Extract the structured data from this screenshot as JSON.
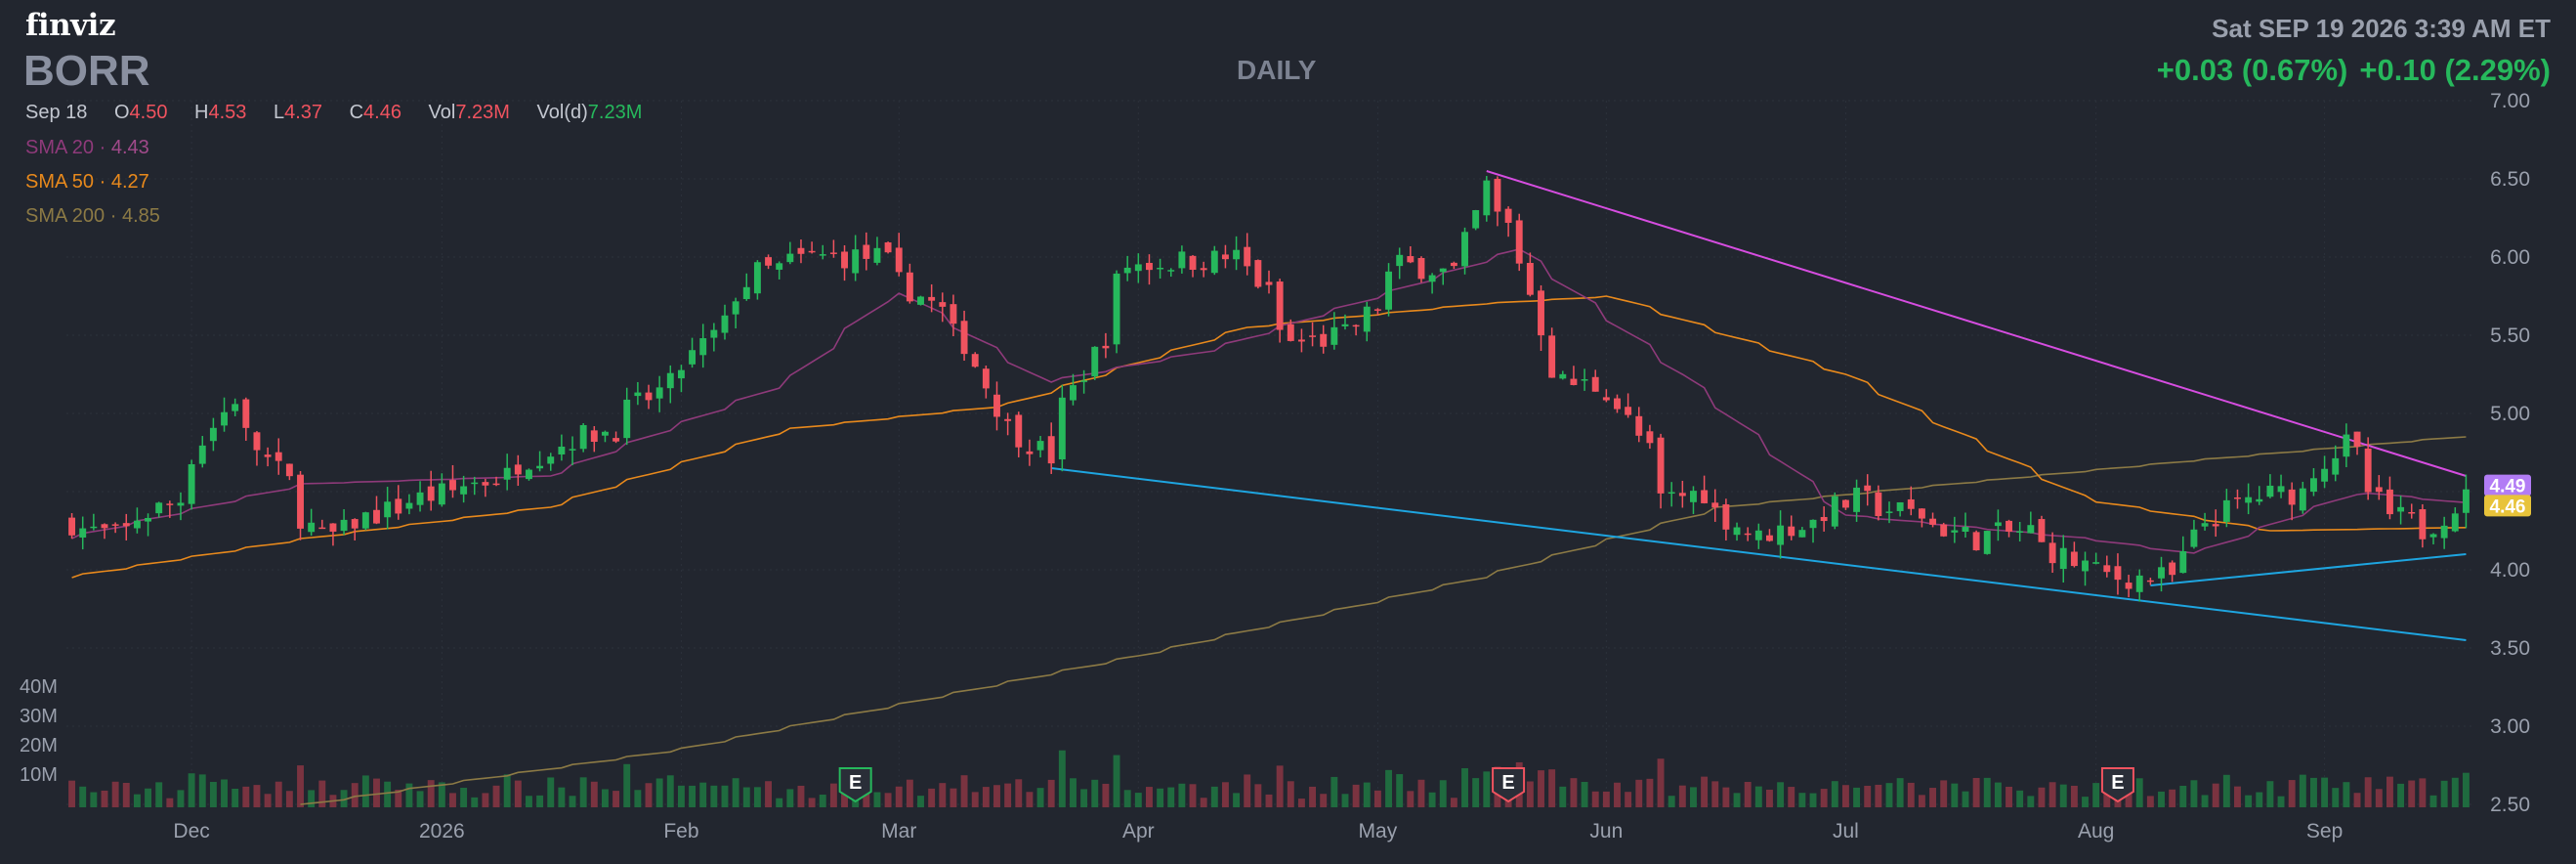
{
  "header": {
    "logo": "finviz",
    "ticker": "BORR",
    "period": "DAILY",
    "datetime": "Sat SEP 19 2026 3:39 AM ET",
    "change_1": "+0.03 (0.67%)",
    "change_2": "+0.10 (2.29%)"
  },
  "ohlc": {
    "date": "Sep 18",
    "open_label": "O",
    "open": "4.50",
    "high_label": "H",
    "high": "4.53",
    "low_label": "L",
    "low": "4.37",
    "close_label": "C",
    "close": "4.46",
    "vol_label": "Vol",
    "vol": "7.23M",
    "vold_label": "Vol(d)",
    "vold": "7.23M"
  },
  "legend": [
    {
      "label": "SMA 20",
      "value": "4.43",
      "color": "#8e3a7a",
      "valueColor": "#a04a8a"
    },
    {
      "label": "SMA 50",
      "value": "4.27",
      "color": "#e8891c",
      "valueColor": "#e8891c"
    },
    {
      "label": "SMA 200",
      "value": "4.85",
      "color": "#8c7a45",
      "valueColor": "#8c7a45"
    }
  ],
  "volume_axis": [
    "40M",
    "30M",
    "20M",
    "10M"
  ],
  "earnings_marker": "E",
  "colors": {
    "background": "#22262f",
    "up": "#26b85c",
    "down": "#f0535f",
    "volume_up": "#1f6b3f",
    "volume_down": "#7a3340",
    "upper_trendline": "#d64de0",
    "lower_trendline": "#1ea5e0",
    "grid": "#2c313b"
  },
  "chart_data": {
    "type": "candlestick",
    "y_ticks": [
      7.0,
      6.5,
      6.0,
      5.5,
      5.0,
      4.5,
      4.0,
      3.5,
      3.0,
      2.5
    ],
    "ylim": [
      2.5,
      7.0
    ],
    "x_ticks": [
      "Dec",
      "2026",
      "Feb",
      "Mar",
      "Apr",
      "May",
      "Jun",
      "Jul",
      "Aug",
      "Sep"
    ],
    "price_tags": [
      {
        "value": "4.49",
        "color": "#b27cf5"
      },
      {
        "value": "4.46",
        "color": "#e8c33a"
      }
    ],
    "earnings": [
      "2026-02-24",
      "2026-05-19",
      "2026-08-05"
    ],
    "anchors": [
      [
        "2025-11-14",
        4.3
      ],
      [
        "2025-11-20",
        4.22
      ],
      [
        "2025-11-28",
        4.45
      ],
      [
        "2025-12-05",
        5.1
      ],
      [
        "2025-12-10",
        4.7
      ],
      [
        "2025-12-17",
        4.2
      ],
      [
        "2025-12-26",
        4.4
      ],
      [
        "2026-01-09",
        4.6
      ],
      [
        "2026-01-16",
        4.8
      ],
      [
        "2026-01-23",
        4.9
      ],
      [
        "2026-02-02",
        5.3
      ],
      [
        "2026-02-11",
        5.9
      ],
      [
        "2026-02-18",
        6.0
      ],
      [
        "2026-02-26",
        6.0
      ],
      [
        "2026-03-04",
        5.75
      ],
      [
        "2026-03-10",
        5.45
      ],
      [
        "2026-03-13",
        5.05
      ],
      [
        "2026-03-20",
        4.72
      ],
      [
        "2026-03-24",
        5.15
      ],
      [
        "2026-03-31",
        5.95
      ],
      [
        "2026-04-14",
        6.0
      ],
      [
        "2026-04-21",
        5.45
      ],
      [
        "2026-04-28",
        5.5
      ],
      [
        "2026-05-05",
        5.95
      ],
      [
        "2026-05-12",
        5.9
      ],
      [
        "2026-05-15",
        6.45
      ],
      [
        "2026-05-19",
        6.2
      ],
      [
        "2026-05-22",
        5.55
      ],
      [
        "2026-05-26",
        5.2
      ],
      [
        "2026-06-01",
        5.15
      ],
      [
        "2026-06-08",
        4.45
      ],
      [
        "2026-06-12",
        4.5
      ],
      [
        "2026-06-19",
        4.2
      ],
      [
        "2026-06-26",
        4.3
      ],
      [
        "2026-07-02",
        4.45
      ],
      [
        "2026-07-10",
        4.35
      ],
      [
        "2026-07-17",
        4.2
      ],
      [
        "2026-07-24",
        4.25
      ],
      [
        "2026-07-30",
        4.05
      ],
      [
        "2026-08-05",
        3.95
      ],
      [
        "2026-08-12",
        3.95
      ],
      [
        "2026-08-14",
        4.2
      ],
      [
        "2026-08-21",
        4.45
      ],
      [
        "2026-08-28",
        4.5
      ],
      [
        "2026-09-03",
        4.8
      ],
      [
        "2026-09-09",
        4.35
      ],
      [
        "2026-09-14",
        4.25
      ],
      [
        "2026-09-18",
        4.46
      ]
    ],
    "sma20": [
      [
        "2025-11-14",
        4.2
      ],
      [
        "2025-12-15",
        4.55
      ],
      [
        "2026-01-15",
        4.6
      ],
      [
        "2026-02-15",
        5.2
      ],
      [
        "2026-03-01",
        5.8
      ],
      [
        "2026-03-20",
        5.2
      ],
      [
        "2026-04-10",
        5.4
      ],
      [
        "2026-05-05",
        5.8
      ],
      [
        "2026-05-20",
        6.05
      ],
      [
        "2026-06-10",
        5.25
      ],
      [
        "2026-07-01",
        4.35
      ],
      [
        "2026-08-01",
        4.2
      ],
      [
        "2026-08-15",
        4.1
      ],
      [
        "2026-09-05",
        4.5
      ],
      [
        "2026-09-18",
        4.43
      ]
    ],
    "sma50": [
      [
        "2025-11-14",
        3.95
      ],
      [
        "2025-12-15",
        4.2
      ],
      [
        "2026-01-15",
        4.4
      ],
      [
        "2026-02-15",
        4.9
      ],
      [
        "2026-03-15",
        5.05
      ],
      [
        "2026-04-15",
        5.55
      ],
      [
        "2026-05-15",
        5.7
      ],
      [
        "2026-06-01",
        5.75
      ],
      [
        "2026-07-01",
        5.25
      ],
      [
        "2026-08-01",
        4.45
      ],
      [
        "2026-08-25",
        4.25
      ],
      [
        "2026-09-18",
        4.27
      ]
    ],
    "sma200": [
      [
        "2025-12-15",
        2.5
      ],
      [
        "2026-02-01",
        2.85
      ],
      [
        "2026-04-01",
        3.45
      ],
      [
        "2026-05-15",
        3.95
      ],
      [
        "2026-06-15",
        4.4
      ],
      [
        "2026-07-15",
        4.55
      ],
      [
        "2026-08-15",
        4.7
      ],
      [
        "2026-09-18",
        4.85
      ]
    ],
    "trendlines": [
      {
        "name": "upper",
        "start": [
          "2026-05-15",
          6.55
        ],
        "end": [
          "2026-09-18",
          4.6
        ]
      },
      {
        "name": "lower",
        "start": [
          "2026-03-20",
          4.65
        ],
        "end": [
          "2026-09-18",
          3.55
        ]
      },
      {
        "name": "support",
        "start": [
          "2026-08-10",
          3.9
        ],
        "end": [
          "2026-09-18",
          4.1
        ]
      }
    ]
  }
}
